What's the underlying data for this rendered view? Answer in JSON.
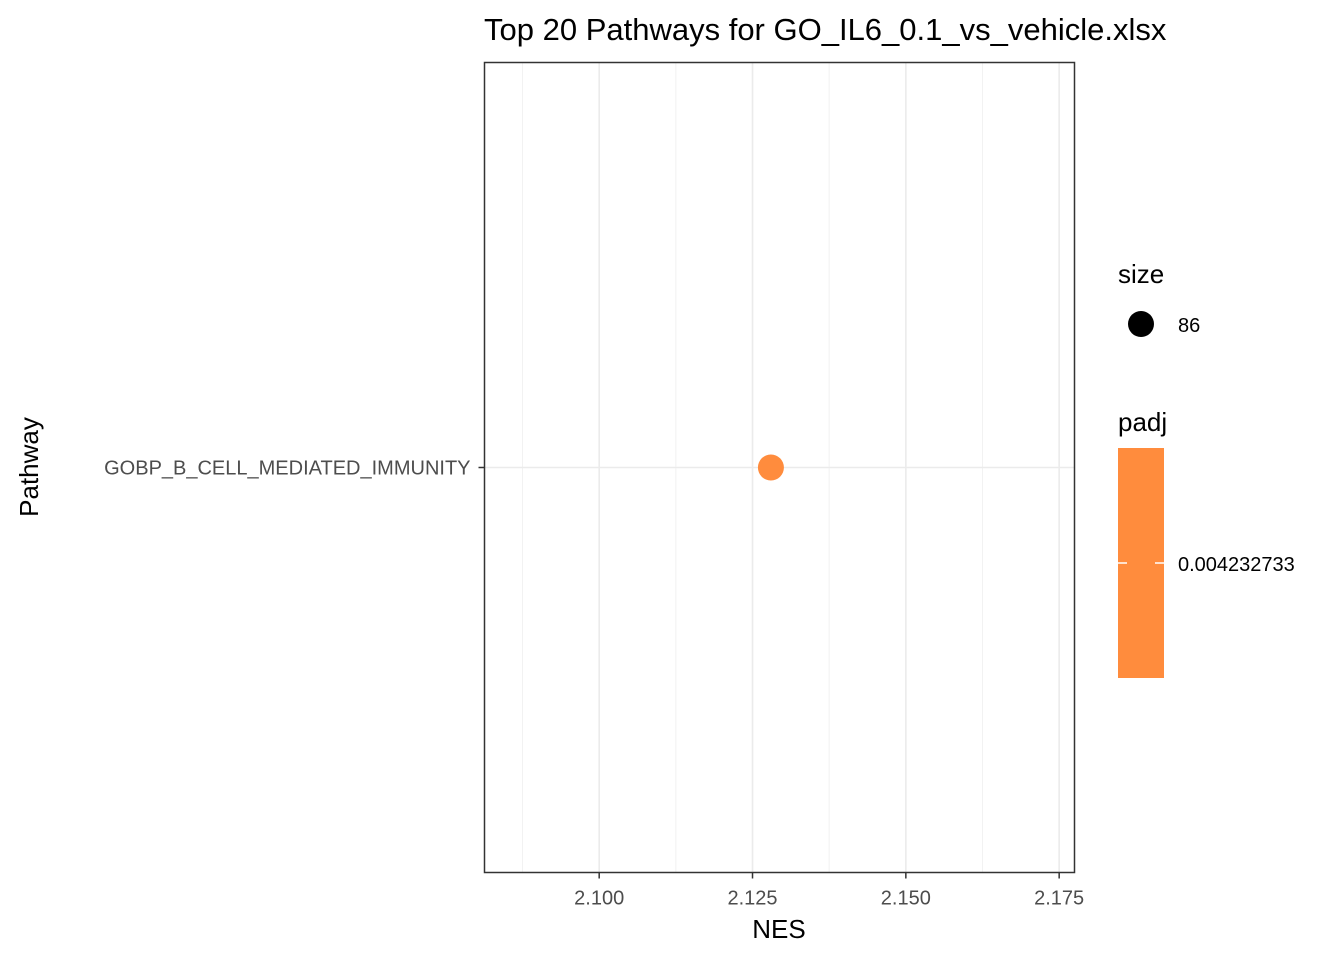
{
  "chart_data": {
    "type": "scatter",
    "title": "Top 20 Pathways for  GO_IL6_0.1_vs_vehicle.xlsx",
    "xlabel": "NES",
    "ylabel": "Pathway",
    "xlim": [
      2.0813,
      2.1775
    ],
    "x_ticks": [
      2.1,
      2.125,
      2.15,
      2.175
    ],
    "x_tick_labels": [
      "2.100",
      "2.125",
      "2.150",
      "2.175"
    ],
    "categories": [
      "GOBP_B_CELL_MEDIATED_IMMUNITY"
    ],
    "points": [
      {
        "pathway": "GOBP_B_CELL_MEDIATED_IMMUNITY",
        "nes": 2.128,
        "size": 86,
        "padj": 0.004232733
      }
    ],
    "grid": true,
    "point_color": "#ff8c3d",
    "legend": {
      "position": "right",
      "size": {
        "title": "size",
        "label": "86",
        "color": "#000000"
      },
      "padj": {
        "title": "padj",
        "label": "0.004232733",
        "color": "#ff8c3d"
      }
    }
  }
}
